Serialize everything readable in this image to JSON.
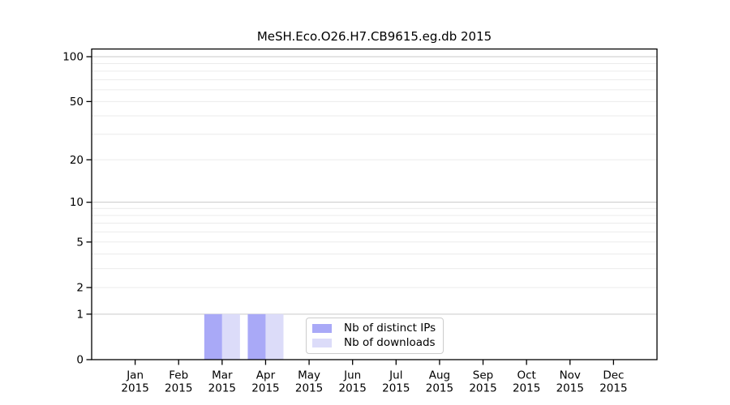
{
  "chart_data": {
    "type": "bar",
    "title": "MeSH.Eco.O26.H7.CB9615.eg.db 2015",
    "categories": [
      "Jan",
      "Feb",
      "Mar",
      "Apr",
      "May",
      "Jun",
      "Jul",
      "Aug",
      "Sep",
      "Oct",
      "Nov",
      "Dec"
    ],
    "x_year": "2015",
    "series": [
      {
        "name": "Nb of distinct IPs",
        "color": "#a9a9f7",
        "values": [
          0,
          0,
          1,
          1,
          0,
          0,
          0,
          0,
          0,
          0,
          0,
          0
        ]
      },
      {
        "name": "Nb of downloads",
        "color": "#dcdcf9",
        "values": [
          0,
          0,
          1,
          1,
          0,
          0,
          0,
          0,
          0,
          0,
          0,
          0
        ]
      }
    ],
    "yscale": "log1p",
    "ylim": [
      0,
      100
    ],
    "yticks": [
      0,
      1,
      2,
      5,
      10,
      20,
      50,
      100
    ],
    "grid_minor": [
      2,
      3,
      4,
      5,
      6,
      7,
      8,
      9,
      20,
      30,
      40,
      50,
      60,
      70,
      80,
      90
    ],
    "grid_major": [
      1,
      10,
      100
    ],
    "legend": {
      "labels": [
        "Nb of distinct IPs",
        "Nb of downloads"
      ],
      "position": "bottom-center-inside"
    },
    "colors": {
      "background": "#ffffff",
      "axis": "#000000",
      "grid_minor": "#ebebeb",
      "grid_major": "#c9c9c9",
      "legend_border": "#cccccc",
      "text": "#000000"
    }
  }
}
